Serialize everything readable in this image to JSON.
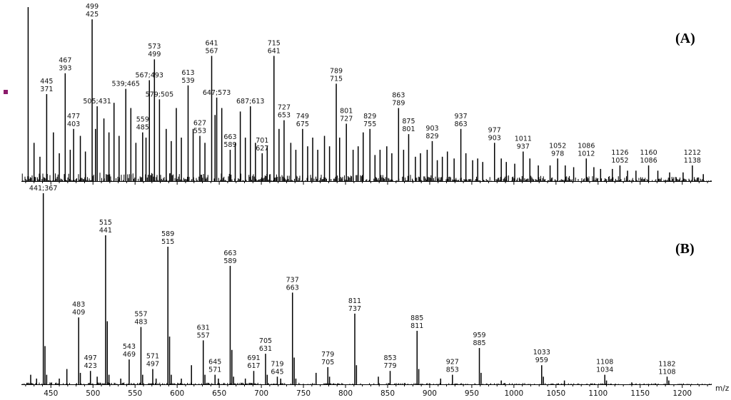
{
  "chart_data": [
    {
      "type": "line",
      "panel": "A",
      "panel_label": "(A)",
      "xlim": [
        415,
        1235
      ],
      "ylim": [
        0,
        100
      ],
      "grid": false,
      "peaks": [
        {
          "x": 423,
          "y": 100
        },
        {
          "x": 430,
          "y": 22
        },
        {
          "x": 437,
          "y": 14
        },
        {
          "x": 445,
          "y": 50,
          "label": [
            "445",
            "371"
          ]
        },
        {
          "x": 453,
          "y": 28
        },
        {
          "x": 460,
          "y": 16
        },
        {
          "x": 467,
          "y": 62,
          "label": [
            "467",
            "393"
          ]
        },
        {
          "x": 473,
          "y": 18
        },
        {
          "x": 477,
          "y": 30,
          "label": [
            "477",
            "403"
          ]
        },
        {
          "x": 485,
          "y": 26
        },
        {
          "x": 491,
          "y": 17
        },
        {
          "x": 499,
          "y": 93,
          "label": [
            "499",
            "425"
          ]
        },
        {
          "x": 503,
          "y": 30
        },
        {
          "x": 505,
          "y": 43,
          "label": [
            "505;431"
          ]
        },
        {
          "x": 513,
          "y": 36
        },
        {
          "x": 519,
          "y": 28
        },
        {
          "x": 525,
          "y": 45
        },
        {
          "x": 531,
          "y": 26
        },
        {
          "x": 539,
          "y": 53,
          "label": [
            "539;465"
          ]
        },
        {
          "x": 545,
          "y": 42
        },
        {
          "x": 551,
          "y": 22
        },
        {
          "x": 559,
          "y": 28,
          "label": [
            "559",
            "485"
          ]
        },
        {
          "x": 563,
          "y": 25
        },
        {
          "x": 567,
          "y": 58,
          "label": [
            "567;493"
          ]
        },
        {
          "x": 573,
          "y": 70,
          "label": [
            "573",
            "499"
          ]
        },
        {
          "x": 579,
          "y": 47,
          "label": [
            "579;505"
          ]
        },
        {
          "x": 587,
          "y": 30
        },
        {
          "x": 593,
          "y": 23
        },
        {
          "x": 599,
          "y": 42
        },
        {
          "x": 605,
          "y": 25
        },
        {
          "x": 613,
          "y": 55,
          "label": [
            "613",
            "539"
          ]
        },
        {
          "x": 619,
          "y": 30
        },
        {
          "x": 627,
          "y": 26,
          "label": [
            "627",
            "553"
          ]
        },
        {
          "x": 633,
          "y": 22
        },
        {
          "x": 641,
          "y": 72,
          "label": [
            "641",
            "567"
          ]
        },
        {
          "x": 645,
          "y": 38
        },
        {
          "x": 647,
          "y": 48,
          "label": [
            "647;573"
          ]
        },
        {
          "x": 653,
          "y": 42
        },
        {
          "x": 663,
          "y": 18,
          "label": [
            "663",
            "589"
          ]
        },
        {
          "x": 669,
          "y": 22
        },
        {
          "x": 675,
          "y": 40
        },
        {
          "x": 681,
          "y": 25
        },
        {
          "x": 687,
          "y": 43,
          "label": [
            "687;613"
          ]
        },
        {
          "x": 693,
          "y": 22
        },
        {
          "x": 701,
          "y": 16,
          "label": [
            "701",
            "627"
          ]
        },
        {
          "x": 707,
          "y": 20
        },
        {
          "x": 715,
          "y": 72,
          "label": [
            "715",
            "641"
          ]
        },
        {
          "x": 721,
          "y": 30
        },
        {
          "x": 727,
          "y": 35,
          "label": [
            "727",
            "653"
          ]
        },
        {
          "x": 735,
          "y": 22
        },
        {
          "x": 741,
          "y": 18
        },
        {
          "x": 749,
          "y": 30,
          "label": [
            "749",
            "675"
          ]
        },
        {
          "x": 755,
          "y": 20
        },
        {
          "x": 761,
          "y": 25
        },
        {
          "x": 767,
          "y": 18
        },
        {
          "x": 775,
          "y": 26
        },
        {
          "x": 781,
          "y": 20
        },
        {
          "x": 789,
          "y": 56,
          "label": [
            "789",
            "715"
          ]
        },
        {
          "x": 793,
          "y": 25
        },
        {
          "x": 801,
          "y": 33,
          "label": [
            "801",
            "727"
          ]
        },
        {
          "x": 809,
          "y": 18
        },
        {
          "x": 815,
          "y": 20
        },
        {
          "x": 821,
          "y": 28
        },
        {
          "x": 829,
          "y": 30,
          "label": [
            "829",
            "755"
          ]
        },
        {
          "x": 835,
          "y": 15
        },
        {
          "x": 841,
          "y": 18
        },
        {
          "x": 849,
          "y": 20
        },
        {
          "x": 855,
          "y": 16
        },
        {
          "x": 863,
          "y": 42,
          "label": [
            "863",
            "789"
          ]
        },
        {
          "x": 869,
          "y": 18
        },
        {
          "x": 875,
          "y": 27,
          "label": [
            "875",
            "801"
          ]
        },
        {
          "x": 883,
          "y": 14
        },
        {
          "x": 889,
          "y": 16
        },
        {
          "x": 897,
          "y": 18
        },
        {
          "x": 903,
          "y": 23,
          "label": [
            "903",
            "829"
          ]
        },
        {
          "x": 909,
          "y": 12
        },
        {
          "x": 915,
          "y": 14
        },
        {
          "x": 921,
          "y": 17
        },
        {
          "x": 929,
          "y": 13
        },
        {
          "x": 937,
          "y": 30,
          "label": [
            "937",
            "863"
          ]
        },
        {
          "x": 943,
          "y": 16
        },
        {
          "x": 951,
          "y": 12
        },
        {
          "x": 957,
          "y": 13
        },
        {
          "x": 963,
          "y": 11
        },
        {
          "x": 977,
          "y": 22,
          "label": [
            "977",
            "903"
          ]
        },
        {
          "x": 985,
          "y": 13
        },
        {
          "x": 991,
          "y": 11
        },
        {
          "x": 1001,
          "y": 10
        },
        {
          "x": 1011,
          "y": 17,
          "label": [
            "1011",
            "937"
          ]
        },
        {
          "x": 1019,
          "y": 13
        },
        {
          "x": 1029,
          "y": 9
        },
        {
          "x": 1043,
          "y": 9
        },
        {
          "x": 1052,
          "y": 13,
          "label": [
            "1052",
            "978"
          ]
        },
        {
          "x": 1061,
          "y": 9
        },
        {
          "x": 1071,
          "y": 8
        },
        {
          "x": 1086,
          "y": 13,
          "label": [
            "1086",
            "1012"
          ]
        },
        {
          "x": 1095,
          "y": 8
        },
        {
          "x": 1103,
          "y": 7
        },
        {
          "x": 1117,
          "y": 7
        },
        {
          "x": 1126,
          "y": 9,
          "label": [
            "1126",
            "1052"
          ]
        },
        {
          "x": 1135,
          "y": 6
        },
        {
          "x": 1145,
          "y": 6
        },
        {
          "x": 1160,
          "y": 9,
          "label": [
            "1160",
            "1086"
          ]
        },
        {
          "x": 1171,
          "y": 6
        },
        {
          "x": 1185,
          "y": 5
        },
        {
          "x": 1201,
          "y": 5
        },
        {
          "x": 1212,
          "y": 9,
          "label": [
            "1212",
            "1138"
          ]
        },
        {
          "x": 1225,
          "y": 4
        }
      ]
    },
    {
      "type": "line",
      "panel": "B",
      "panel_label": "(B)",
      "xlabel": "m/z",
      "xlim": [
        415,
        1235
      ],
      "xticks": [
        450,
        500,
        550,
        600,
        650,
        700,
        750,
        800,
        850,
        900,
        950,
        1000,
        1050,
        1100,
        1150,
        1200
      ],
      "ylim": [
        0,
        100
      ],
      "grid": false,
      "peaks": [
        {
          "x": 426,
          "y": 5
        },
        {
          "x": 433,
          "y": 3
        },
        {
          "x": 441,
          "y": 100,
          "label": [
            "441;367"
          ]
        },
        {
          "x": 443,
          "y": 20
        },
        {
          "x": 445,
          "y": 5
        },
        {
          "x": 460,
          "y": 3
        },
        {
          "x": 469,
          "y": 8
        },
        {
          "x": 483,
          "y": 35,
          "label": [
            "483",
            "409"
          ]
        },
        {
          "x": 485,
          "y": 6
        },
        {
          "x": 497,
          "y": 7,
          "label": [
            "497",
            "423"
          ]
        },
        {
          "x": 505,
          "y": 4
        },
        {
          "x": 515,
          "y": 78,
          "label": [
            "515",
            "441"
          ]
        },
        {
          "x": 517,
          "y": 33
        },
        {
          "x": 519,
          "y": 5
        },
        {
          "x": 533,
          "y": 3
        },
        {
          "x": 543,
          "y": 13,
          "label": [
            "543",
            "469"
          ]
        },
        {
          "x": 557,
          "y": 30,
          "label": [
            "557",
            "483"
          ]
        },
        {
          "x": 559,
          "y": 5
        },
        {
          "x": 571,
          "y": 8,
          "label": [
            "571",
            "497"
          ]
        },
        {
          "x": 575,
          "y": 3
        },
        {
          "x": 589,
          "y": 72,
          "label": [
            "589",
            "515"
          ]
        },
        {
          "x": 591,
          "y": 25
        },
        {
          "x": 593,
          "y": 5
        },
        {
          "x": 605,
          "y": 3
        },
        {
          "x": 617,
          "y": 10
        },
        {
          "x": 631,
          "y": 23,
          "label": [
            "631",
            "557"
          ]
        },
        {
          "x": 633,
          "y": 5
        },
        {
          "x": 645,
          "y": 5,
          "label": [
            "645",
            "571"
          ]
        },
        {
          "x": 649,
          "y": 3
        },
        {
          "x": 663,
          "y": 62,
          "label": [
            "663",
            "589"
          ]
        },
        {
          "x": 665,
          "y": 18
        },
        {
          "x": 667,
          "y": 4
        },
        {
          "x": 681,
          "y": 3
        },
        {
          "x": 691,
          "y": 7,
          "label": [
            "691",
            "617"
          ]
        },
        {
          "x": 705,
          "y": 16,
          "label": [
            "705",
            "631"
          ]
        },
        {
          "x": 707,
          "y": 5
        },
        {
          "x": 719,
          "y": 4,
          "label": [
            "719",
            "645"
          ]
        },
        {
          "x": 723,
          "y": 3
        },
        {
          "x": 737,
          "y": 48,
          "label": [
            "737",
            "663"
          ]
        },
        {
          "x": 739,
          "y": 14
        },
        {
          "x": 741,
          "y": 3
        },
        {
          "x": 765,
          "y": 6
        },
        {
          "x": 779,
          "y": 9,
          "label": [
            "779",
            "705"
          ]
        },
        {
          "x": 781,
          "y": 4
        },
        {
          "x": 811,
          "y": 37,
          "label": [
            "811",
            "737"
          ]
        },
        {
          "x": 813,
          "y": 10
        },
        {
          "x": 839,
          "y": 4
        },
        {
          "x": 853,
          "y": 7,
          "label": [
            "853",
            "779"
          ]
        },
        {
          "x": 885,
          "y": 28,
          "label": [
            "885",
            "811"
          ]
        },
        {
          "x": 887,
          "y": 8
        },
        {
          "x": 913,
          "y": 3
        },
        {
          "x": 927,
          "y": 5,
          "label": [
            "927",
            "853"
          ]
        },
        {
          "x": 959,
          "y": 19,
          "label": [
            "959",
            "885"
          ]
        },
        {
          "x": 961,
          "y": 6
        },
        {
          "x": 985,
          "y": 2
        },
        {
          "x": 1033,
          "y": 10,
          "label": [
            "1033",
            "959"
          ]
        },
        {
          "x": 1035,
          "y": 4
        },
        {
          "x": 1060,
          "y": 2
        },
        {
          "x": 1108,
          "y": 5,
          "label": [
            "1108",
            "1034"
          ]
        },
        {
          "x": 1110,
          "y": 2
        },
        {
          "x": 1140,
          "y": 1
        },
        {
          "x": 1182,
          "y": 4,
          "label": [
            "1182",
            "1108"
          ]
        },
        {
          "x": 1184,
          "y": 2
        }
      ]
    }
  ],
  "colors": {
    "trace": "#000000",
    "axis": "#000000",
    "marker": "#8b1a6b"
  }
}
